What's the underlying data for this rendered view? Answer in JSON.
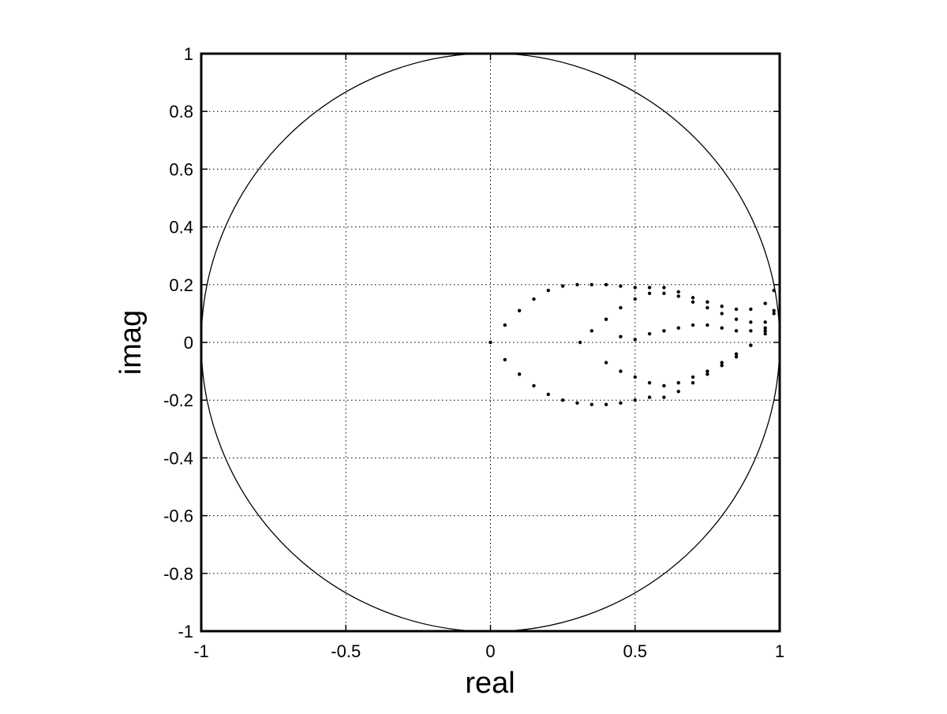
{
  "chart_data": {
    "type": "scatter",
    "title": "",
    "xlabel": "real",
    "ylabel": "imag",
    "xlim": [
      -1,
      1
    ],
    "ylim": [
      -1,
      1
    ],
    "grid": true,
    "grid_style": "dotted",
    "legend": "none",
    "x_ticks": [
      -1,
      -0.5,
      0,
      0.5,
      1
    ],
    "x_tick_labels": [
      "-1",
      "-0.5",
      "0",
      "0.5",
      "1"
    ],
    "y_ticks": [
      -1,
      -0.8,
      -0.6,
      -0.4,
      -0.2,
      0,
      0.2,
      0.4,
      0.6,
      0.8,
      1
    ],
    "y_tick_labels": [
      "-1",
      "-0.8",
      "-0.6",
      "-0.4",
      "-0.2",
      "0",
      "0.2",
      "0.4",
      "0.6",
      "0.8",
      "1"
    ],
    "reference_curve": {
      "shape": "unit circle",
      "center": [
        0,
        0
      ],
      "radius": 1
    },
    "series": [
      {
        "marker": "dot",
        "color": "#000000",
        "x": [
          0,
          0.05,
          0.1,
          0.15,
          0.2,
          0.25,
          0.3,
          0.35,
          0.4,
          0.45,
          0.5,
          0.55,
          0.6,
          0.65,
          0.7,
          0.75,
          0.8,
          0.85,
          0.9,
          0.95,
          0.98,
          0.05,
          0.1,
          0.15,
          0.2,
          0.25,
          0.3,
          0.35,
          0.4,
          0.45,
          0.5,
          0.55,
          0.6,
          0.65,
          0.7,
          0.75,
          0.8,
          0.85,
          0.9,
          0.95,
          0.98,
          0.31,
          0.35,
          0.4,
          0.45,
          0.5,
          0.55,
          0.6,
          0.65,
          0.7,
          0.75,
          0.8,
          0.85,
          0.9,
          0.95,
          0.98,
          0.4,
          0.45,
          0.5,
          0.55,
          0.6,
          0.65,
          0.7,
          0.75,
          0.8,
          0.85,
          0.9,
          0.95,
          0.45,
          0.5,
          0.55,
          0.6,
          0.65,
          0.7,
          0.75,
          0.8,
          0.85,
          0.9,
          0.95
        ],
        "y": [
          0,
          0.06,
          0.11,
          0.15,
          0.18,
          0.195,
          0.2,
          0.2,
          0.2,
          0.195,
          0.19,
          0.19,
          0.19,
          0.175,
          0.155,
          0.14,
          0.125,
          0.115,
          0.115,
          0.135,
          0.18,
          -0.06,
          -0.11,
          -0.15,
          -0.18,
          -0.2,
          -0.21,
          -0.215,
          -0.215,
          -0.21,
          -0.2,
          -0.19,
          -0.19,
          -0.17,
          -0.14,
          -0.11,
          -0.08,
          -0.05,
          -0.01,
          0.04,
          0.11,
          0,
          0.04,
          0.08,
          0.12,
          0.15,
          0.17,
          0.17,
          0.16,
          0.14,
          0.12,
          0.1,
          0.08,
          0.07,
          0.07,
          0.1,
          -0.07,
          -0.1,
          -0.12,
          -0.14,
          -0.15,
          -0.14,
          -0.12,
          -0.1,
          -0.07,
          -0.04,
          -0.01,
          0.03,
          0.02,
          0.01,
          0.03,
          0.04,
          0.05,
          0.06,
          0.06,
          0.05,
          0.04,
          0.04,
          0.05
        ]
      }
    ]
  }
}
